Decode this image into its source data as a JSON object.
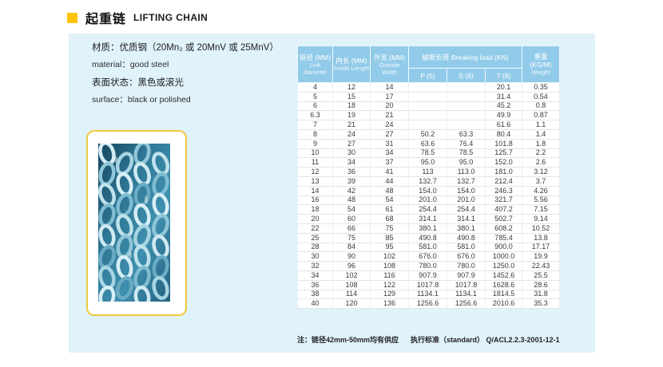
{
  "header": {
    "title_zh": "起重链",
    "title_en": "LIFTING CHAIN"
  },
  "info": {
    "lines": {
      "0": "材质：优质钢（20Mn₂ 或 20MnV 或 25MnV）",
      "1": "material：good steel",
      "2": "表面状态：黑色或滚光",
      "3": "surface：black or polished"
    }
  },
  "photo": {
    "label": "chain-photo"
  },
  "table": {
    "header": {
      "link_zh": "链径 (MM)",
      "link_en": "Link diameter",
      "inside_zh": "内长 (MM)",
      "inside_en": "Inside Length",
      "outside_zh": "外宽 (MM)",
      "outside_en": "Outside Width",
      "group": "破断负荷 Breaking load (KN)",
      "sub_p": "P (5)",
      "sub_s": "S (6)",
      "sub_t": "T (8)",
      "weight_zh": "重量 (KG/M)",
      "weight_en": "Weight"
    },
    "rows": [
      [
        "4",
        "12",
        "14",
        "",
        "",
        "20.1",
        "0.35"
      ],
      [
        "5",
        "15",
        "17",
        "",
        "",
        "31.4",
        "0.54"
      ],
      [
        "6",
        "18",
        "20",
        "",
        "",
        "45.2",
        "0.8"
      ],
      [
        "6.3",
        "19",
        "21",
        "",
        "",
        "49.9",
        "0.87"
      ],
      [
        "7",
        "21",
        "24",
        "",
        "",
        "61.6",
        "1.1"
      ],
      [
        "8",
        "24",
        "27",
        "50.2",
        "63.3",
        "80.4",
        "1.4"
      ],
      [
        "9",
        "27",
        "31",
        "63.6",
        "76.4",
        "101.8",
        "1.8"
      ],
      [
        "10",
        "30",
        "34",
        "78.5",
        "78.5",
        "125.7",
        "2.2"
      ],
      [
        "11",
        "34",
        "37",
        "95.0",
        "95.0",
        "152.0",
        "2.6"
      ],
      [
        "12",
        "36",
        "41",
        "113",
        "113.0",
        "181.0",
        "3.12"
      ],
      [
        "13",
        "39",
        "44",
        "132.7",
        "132.7",
        "212.4",
        "3.7"
      ],
      [
        "14",
        "42",
        "48",
        "154.0",
        "154.0",
        "246.3",
        "4.26"
      ],
      [
        "16",
        "48",
        "54",
        "201.0",
        "201.0",
        "321.7",
        "5.56"
      ],
      [
        "18",
        "54",
        "61",
        "254.4",
        "254.4",
        "407.2",
        "7.15"
      ],
      [
        "20",
        "60",
        "68",
        "314.1",
        "314.1",
        "502.7",
        "9.14"
      ],
      [
        "22",
        "66",
        "75",
        "380.1",
        "380.1",
        "608.2",
        "10.52"
      ],
      [
        "25",
        "75",
        "85",
        "490.8",
        "490.8",
        "785.4",
        "13.8"
      ],
      [
        "28",
        "84",
        "95",
        "581.0",
        "581.0",
        "900.0",
        "17.17"
      ],
      [
        "30",
        "90",
        "102",
        "676.0",
        "676.0",
        "1000.0",
        "19.9"
      ],
      [
        "32",
        "96",
        "108",
        "780.0",
        "780.0",
        "1250.0",
        "22.43"
      ],
      [
        "34",
        "102",
        "116",
        "907.9",
        "907.9",
        "1452.6",
        "25.5"
      ],
      [
        "36",
        "108",
        "122",
        "1017.8",
        "1017.8",
        "1628.6",
        "28.6"
      ],
      [
        "38",
        "114",
        "129",
        "1134.1",
        "1134.1",
        "1814.5",
        "31.8"
      ],
      [
        "40",
        "120",
        "136",
        "1256.6",
        "1256.6",
        "2010.6",
        "35.3"
      ]
    ]
  },
  "footer": {
    "note": "注：链径42mm-50mm均有供应",
    "standard": "执行标准（standard） Q/ACL2.2.3-2001-12-1"
  },
  "colors": {
    "accent_yellow": "#FFC408",
    "panel_bg": "#E0F2FA",
    "table_header_bg": "#92CBE9",
    "photo_border": "#F0CA3C",
    "chain_teal": "#3F8FAE"
  }
}
